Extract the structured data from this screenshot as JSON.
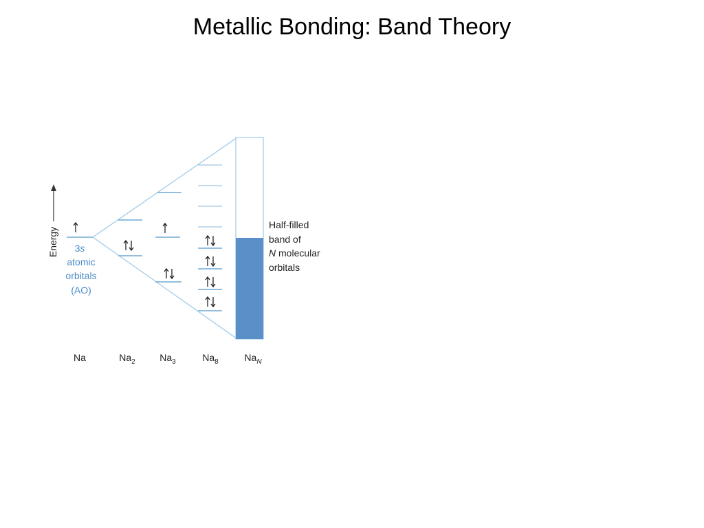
{
  "header": {
    "title": "Metallic Bonding: Band Theory"
  },
  "diagram": {
    "axis_label": "Energy",
    "ao_label": {
      "orbital": {
        "number": "3",
        "letter": "s"
      },
      "lines": [
        "atomic",
        "orbitals",
        "(AO)"
      ]
    },
    "band_label": {
      "line1": "Half-filled",
      "line2": "band of",
      "line3": {
        "italic": "N",
        "text": " molecular"
      },
      "line4": "orbitals"
    },
    "columns": [
      {
        "base": "Na"
      },
      {
        "base": "Na",
        "subscript": "2"
      },
      {
        "base": "Na",
        "subscript": "3"
      },
      {
        "base": "Na",
        "subscript": "8"
      },
      {
        "base": "Na",
        "subscript": "N"
      }
    ]
  }
}
